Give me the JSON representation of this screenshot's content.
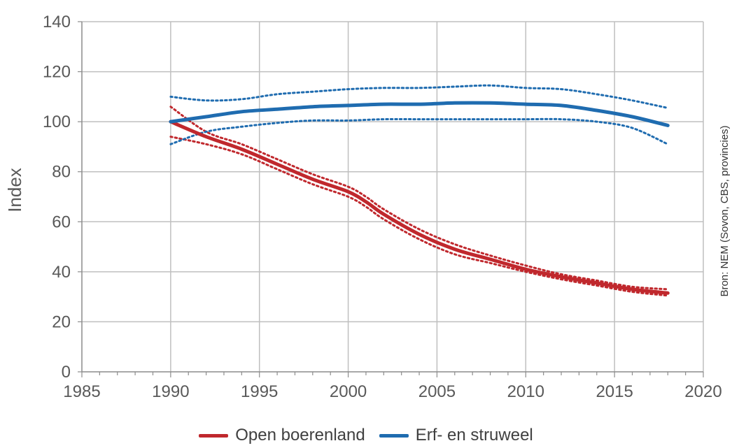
{
  "chart_data": {
    "type": "line",
    "title": "",
    "xlabel": "",
    "ylabel": "Index",
    "xlim": [
      1985,
      2020
    ],
    "ylim": [
      0,
      140
    ],
    "x_ticks": [
      "1985",
      "1990",
      "1995",
      "2000",
      "2005",
      "2010",
      "2015",
      "2020"
    ],
    "y_ticks": [
      "0",
      "20",
      "40",
      "60",
      "80",
      "100",
      "120",
      "140"
    ],
    "grid": true,
    "legend_position": "bottom",
    "source_note": "Bron: NEM (Sovon, CBS, provincies)",
    "series": [
      {
        "name": "Open boerenland",
        "color": "#c0282d",
        "x": [
          1990,
          1992,
          1994,
          1996,
          1998,
          2000,
          2001,
          2002,
          2004,
          2006,
          2008,
          2010,
          2012,
          2014,
          2016,
          2018
        ],
        "y": [
          100,
          94,
          89,
          83,
          77,
          72,
          68,
          63,
          55,
          49,
          45,
          41,
          38,
          35.5,
          33,
          31.5
        ],
        "upper": [
          106,
          96,
          91,
          85,
          79,
          74,
          70,
          65,
          57,
          51,
          46.5,
          42.5,
          39,
          36.5,
          34,
          33
        ],
        "lower": [
          94,
          91,
          87,
          81,
          75,
          70,
          66,
          61,
          53,
          47,
          43.5,
          40,
          37,
          34.5,
          32,
          30.5
        ]
      },
      {
        "name": "Erf- en struweel",
        "color": "#1f6cb0",
        "x": [
          1990,
          1992,
          1994,
          1996,
          1998,
          2000,
          2002,
          2004,
          2006,
          2008,
          2010,
          2012,
          2014,
          2016,
          2018
        ],
        "y": [
          100,
          102,
          104,
          105,
          106,
          106.5,
          107,
          107,
          107.5,
          107.5,
          107,
          106.5,
          104.5,
          102,
          98.5
        ],
        "upper": [
          110,
          108.5,
          109,
          111,
          112,
          113,
          113.5,
          113.5,
          114,
          114.5,
          113.5,
          113,
          111,
          108.5,
          105.5
        ],
        "lower": [
          91,
          96,
          98,
          99.5,
          100.5,
          100.5,
          101,
          101,
          101,
          101,
          101,
          101,
          100,
          97.5,
          91
        ]
      }
    ]
  }
}
